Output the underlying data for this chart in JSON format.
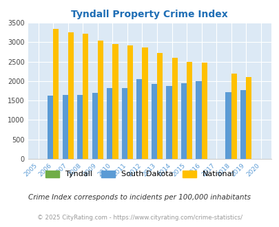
{
  "title": "Tyndall Property Crime Index",
  "years": [
    2005,
    2006,
    2007,
    2008,
    2009,
    2010,
    2011,
    2012,
    2013,
    2014,
    2015,
    2016,
    2017,
    2018,
    2019,
    2020
  ],
  "tyndall": [
    0,
    0,
    0,
    0,
    0,
    0,
    0,
    0,
    0,
    0,
    0,
    0,
    0,
    0,
    0,
    0
  ],
  "south_dakota": [
    0,
    1620,
    1640,
    1640,
    1700,
    1820,
    1820,
    2050,
    1930,
    1870,
    1940,
    1990,
    0,
    1710,
    1760,
    0
  ],
  "national": [
    0,
    3340,
    3260,
    3220,
    3040,
    2960,
    2920,
    2860,
    2720,
    2600,
    2490,
    2470,
    0,
    2200,
    2100,
    0
  ],
  "bar_width": 0.38,
  "sd_color": "#5b9bd5",
  "national_color": "#ffc000",
  "tyndall_color": "#70ad47",
  "bg_color": "#dce9f5",
  "ylim": [
    0,
    3500
  ],
  "yticks": [
    0,
    500,
    1000,
    1500,
    2000,
    2500,
    3000,
    3500
  ],
  "title_color": "#1f6eb5",
  "footer_note": "Crime Index corresponds to incidents per 100,000 inhabitants",
  "copyright": "© 2025 CityRating.com - https://www.cityrating.com/crime-statistics/",
  "legend_labels": [
    "Tyndall",
    "South Dakota",
    "National"
  ],
  "tick_color": "#5b9bd5"
}
